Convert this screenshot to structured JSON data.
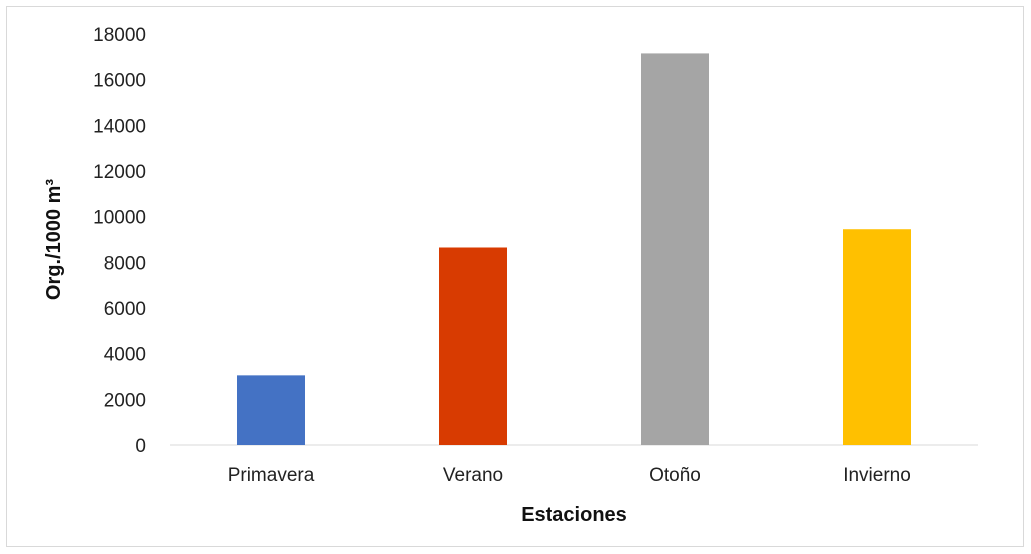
{
  "chart_data": {
    "type": "bar",
    "title": "",
    "xlabel": "Estaciones",
    "ylabel": "Org./1000 m³",
    "categories": [
      "Primavera",
      "Verano",
      "Otoño",
      "Invierno"
    ],
    "values": [
      3050,
      8650,
      17150,
      9450
    ],
    "colors": [
      "#4472c4",
      "#d83b01",
      "#a5a5a5",
      "#ffc000"
    ],
    "ylim": [
      0,
      18000
    ],
    "yticks": [
      0,
      2000,
      4000,
      6000,
      8000,
      10000,
      12000,
      14000,
      16000,
      18000
    ],
    "grid": false,
    "legend": "none"
  }
}
